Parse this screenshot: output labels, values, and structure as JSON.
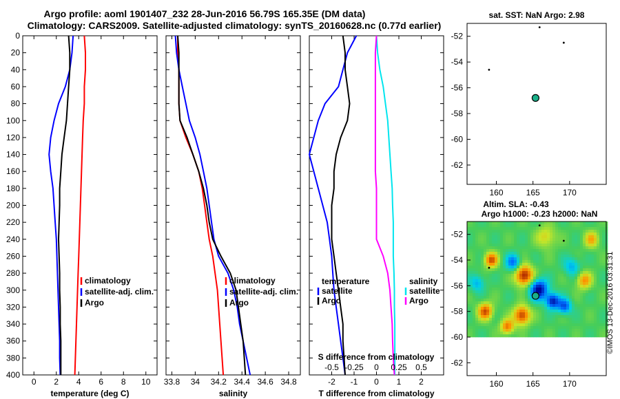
{
  "header": {
    "line1": "Argo profile: aoml 1901407_232 28-Jun-2016 56.79S 165.35E (DM data)",
    "line2": "Climatology: CARS2009. Satellite-adjusted climatology: synTS_20160628.nc (0.77d earlier)"
  },
  "credit": "©IMOS 13-Dec-2016 03:31:31",
  "colors": {
    "climatology": "#ff0000",
    "satellite": "#0000ff",
    "argo": "#000000",
    "sal_climatology": "#ff00ff",
    "sal_satellite": "#00e5ee"
  },
  "chart_data": [
    {
      "type": "line",
      "id": "temperature",
      "xlabel": "temperature (deg C)",
      "ylabel": "depth",
      "xlim": [
        -1,
        11
      ],
      "ylim": [
        400,
        0
      ],
      "xticks": [
        0,
        2,
        4,
        6,
        8,
        10
      ],
      "yticks": [
        0,
        20,
        40,
        60,
        80,
        100,
        120,
        140,
        160,
        180,
        200,
        220,
        240,
        260,
        280,
        300,
        320,
        340,
        360,
        380,
        400
      ],
      "legend": [
        "climatology",
        "satellite-adj. clim.",
        "Argo"
      ],
      "series": [
        {
          "name": "climatology",
          "color": "#ff0000",
          "x": [
            4.5,
            4.6,
            4.6,
            4.5,
            4.5,
            4.4,
            4.35,
            4.3,
            4.25,
            4.2,
            4.15,
            4.1,
            4.05,
            4.0,
            3.95,
            3.9,
            3.85,
            3.8,
            3.75,
            3.7,
            3.65
          ],
          "y": [
            0,
            20,
            40,
            60,
            80,
            100,
            120,
            140,
            160,
            180,
            200,
            220,
            240,
            260,
            280,
            300,
            320,
            340,
            360,
            380,
            400
          ]
        },
        {
          "name": "satellite-adj. clim.",
          "color": "#0000ff",
          "x": [
            3.5,
            3.4,
            3.2,
            2.8,
            2.2,
            1.8,
            1.5,
            1.35,
            1.5,
            1.7,
            1.8,
            1.9,
            2.0,
            2.05,
            2.1,
            2.15,
            2.2,
            2.25,
            2.3,
            2.3,
            2.35
          ],
          "y": [
            0,
            20,
            40,
            60,
            80,
            100,
            120,
            140,
            160,
            180,
            200,
            220,
            240,
            260,
            280,
            300,
            320,
            340,
            360,
            380,
            400
          ]
        },
        {
          "name": "Argo",
          "color": "#000000",
          "x": [
            3.1,
            3.2,
            3.2,
            3.1,
            3.0,
            2.9,
            2.7,
            2.5,
            2.4,
            2.3,
            2.3,
            2.25,
            2.2,
            2.25,
            2.3,
            2.3,
            2.35,
            2.35,
            2.4,
            2.4,
            2.4
          ],
          "y": [
            0,
            20,
            40,
            60,
            80,
            100,
            120,
            140,
            160,
            180,
            200,
            220,
            240,
            260,
            280,
            300,
            320,
            340,
            360,
            380,
            400
          ]
        }
      ]
    },
    {
      "type": "line",
      "id": "salinity",
      "xlabel": "salinity",
      "xlim": [
        33.75,
        34.9
      ],
      "ylim": [
        400,
        0
      ],
      "xticks": [
        33.8,
        34,
        34.2,
        34.4,
        34.6,
        34.8
      ],
      "legend": [
        "climatology",
        "satellite-adj. clim.",
        "Argo"
      ],
      "series": [
        {
          "name": "climatology",
          "color": "#ff0000",
          "x": [
            33.85,
            33.85,
            33.86,
            33.86,
            33.86,
            33.87,
            33.92,
            33.98,
            34.03,
            34.06,
            34.08,
            34.1,
            34.12,
            34.15,
            34.17,
            34.19,
            34.2,
            34.21,
            34.22,
            34.23,
            34.24
          ],
          "y": [
            0,
            20,
            40,
            60,
            80,
            100,
            120,
            140,
            160,
            180,
            200,
            220,
            240,
            260,
            280,
            300,
            320,
            340,
            360,
            380,
            400
          ]
        },
        {
          "name": "satellite-adj. clim.",
          "color": "#0000ff",
          "x": [
            33.83,
            33.84,
            33.86,
            33.89,
            33.92,
            33.95,
            34.0,
            34.04,
            34.07,
            34.1,
            34.12,
            34.14,
            34.16,
            34.2,
            34.28,
            34.33,
            34.36,
            34.38,
            34.41,
            34.44,
            34.47
          ],
          "y": [
            0,
            20,
            40,
            60,
            80,
            100,
            120,
            140,
            160,
            180,
            200,
            220,
            240,
            260,
            280,
            300,
            320,
            340,
            360,
            380,
            400
          ]
        },
        {
          "name": "Argo",
          "color": "#000000",
          "x": [
            33.85,
            33.86,
            33.86,
            33.86,
            33.86,
            33.87,
            33.93,
            33.98,
            34.03,
            34.07,
            34.1,
            34.12,
            34.15,
            34.22,
            34.3,
            34.35,
            34.37,
            34.39,
            34.41,
            34.42,
            34.43
          ],
          "y": [
            0,
            20,
            40,
            60,
            80,
            100,
            120,
            140,
            160,
            180,
            200,
            220,
            240,
            260,
            280,
            300,
            320,
            340,
            360,
            380,
            400
          ]
        }
      ]
    },
    {
      "type": "line",
      "id": "difference",
      "xlabel": "T difference from climatology",
      "top_axis_label": "S difference from climatology",
      "xlim": [
        -3,
        3
      ],
      "ylim": [
        400,
        0
      ],
      "xticks": [
        -2,
        -1,
        0,
        1,
        2
      ],
      "top_xticks": [
        "-0.5",
        "-0.25",
        "0",
        "0.25",
        "0.5"
      ],
      "legend_left_title": "temperature",
      "legend_right_title": "salinity",
      "legend_left": [
        "satellite",
        "Argo"
      ],
      "legend_right": [
        "satellite",
        "Argo"
      ],
      "series": [
        {
          "name": "temperature satellite",
          "color": "#0000ff",
          "x": [
            -0.9,
            -1.3,
            -1.5,
            -1.7,
            -2.3,
            -2.6,
            -2.8,
            -3.0,
            -2.8,
            -2.6,
            -2.4,
            -2.2,
            -2.1,
            -2.0,
            -1.95,
            -1.9,
            -1.8,
            -1.7,
            -1.6,
            -1.5,
            -1.4
          ],
          "y": [
            0,
            20,
            40,
            60,
            80,
            100,
            120,
            140,
            160,
            180,
            200,
            220,
            240,
            260,
            280,
            300,
            320,
            340,
            360,
            380,
            400
          ]
        },
        {
          "name": "temperature Argo",
          "color": "#000000",
          "x": [
            -1.5,
            -1.4,
            -1.4,
            -1.3,
            -1.2,
            -1.3,
            -1.6,
            -1.8,
            -1.9,
            -1.9,
            -2.0,
            -2.0,
            -2.0,
            -1.9,
            -1.8,
            -1.7,
            -1.6,
            -1.5,
            -1.5,
            -1.45,
            -1.4
          ],
          "y": [
            0,
            20,
            40,
            60,
            80,
            100,
            120,
            140,
            160,
            180,
            200,
            220,
            240,
            260,
            280,
            300,
            320,
            340,
            360,
            380,
            400
          ]
        },
        {
          "name": "salinity satellite",
          "color": "#00e5ee",
          "x": [
            0.0,
            0.05,
            0.15,
            0.3,
            0.4,
            0.5,
            0.55,
            0.6,
            0.65,
            0.7,
            0.72,
            0.75,
            0.75,
            0.75,
            0.78,
            0.8,
            0.8,
            0.82,
            0.82,
            0.82,
            0.82
          ],
          "y": [
            0,
            20,
            40,
            60,
            80,
            100,
            120,
            140,
            160,
            180,
            200,
            220,
            240,
            260,
            280,
            300,
            320,
            340,
            360,
            380,
            400
          ]
        },
        {
          "name": "salinity Argo",
          "color": "#ff00ff",
          "x": [
            0.0,
            -0.05,
            -0.05,
            -0.05,
            -0.05,
            -0.05,
            -0.05,
            -0.05,
            -0.05,
            0.0,
            0.0,
            0.0,
            0.0,
            0.3,
            0.5,
            0.6,
            0.65,
            0.7,
            0.72,
            0.75,
            0.8
          ],
          "y": [
            0,
            20,
            40,
            60,
            80,
            100,
            120,
            140,
            160,
            180,
            200,
            220,
            240,
            260,
            280,
            300,
            320,
            340,
            360,
            380,
            400
          ]
        }
      ]
    },
    {
      "type": "scatter",
      "id": "sst_map",
      "title": "sat. SST: NaN Argo: 2.98",
      "xlim": [
        156,
        175
      ],
      "ylim": [
        -63.5,
        -51
      ],
      "xticks": [
        160,
        165,
        170
      ],
      "yticks": [
        -52,
        -54,
        -56,
        -58,
        -60,
        -62
      ],
      "profile_point": {
        "lon": 165.35,
        "lat": -56.79
      }
    },
    {
      "type": "heatmap",
      "id": "sla_map",
      "title_line1": "Altim. SLA: -0.43",
      "title_line2": "Argo h1000: -0.23 h2000: NaN",
      "xlim": [
        156,
        175
      ],
      "ylim": [
        -63,
        -51
      ],
      "data_lat_min": -60,
      "xticks": [
        160,
        165,
        170
      ],
      "yticks": [
        -52,
        -54,
        -56,
        -58,
        -60,
        -62
      ],
      "profile_point": {
        "lon": 165.35,
        "lat": -56.79
      },
      "blobs": [
        {
          "lon": 163.8,
          "lat": -55.2,
          "v": 1.0,
          "r": 1.2
        },
        {
          "lon": 159.3,
          "lat": -54.0,
          "v": 0.8,
          "r": 0.9
        },
        {
          "lon": 163.5,
          "lat": -58.3,
          "v": 0.9,
          "r": 1.1
        },
        {
          "lon": 158.5,
          "lat": -58.0,
          "v": 0.8,
          "r": 1.0
        },
        {
          "lon": 161.5,
          "lat": -59.2,
          "v": 0.7,
          "r": 0.9
        },
        {
          "lon": 172.0,
          "lat": -55.6,
          "v": 0.6,
          "r": 1.0
        },
        {
          "lon": 173.0,
          "lat": -52.4,
          "v": 0.5,
          "r": 1.0
        },
        {
          "lon": 166.8,
          "lat": -52.2,
          "v": 0.4,
          "r": 1.3
        },
        {
          "lon": 165.8,
          "lat": -56.3,
          "v": -1.0,
          "r": 1.2
        },
        {
          "lon": 167.7,
          "lat": -57.2,
          "v": -0.9,
          "r": 0.9
        },
        {
          "lon": 162.3,
          "lat": -54.2,
          "v": -0.6,
          "r": 1.0
        },
        {
          "lon": 169.3,
          "lat": -57.6,
          "v": -0.7,
          "r": 0.9
        },
        {
          "lon": 170.3,
          "lat": -54.5,
          "v": -0.4,
          "r": 1.1
        },
        {
          "lon": 157.4,
          "lat": -55.8,
          "v": -0.4,
          "r": 1.0
        }
      ]
    }
  ]
}
